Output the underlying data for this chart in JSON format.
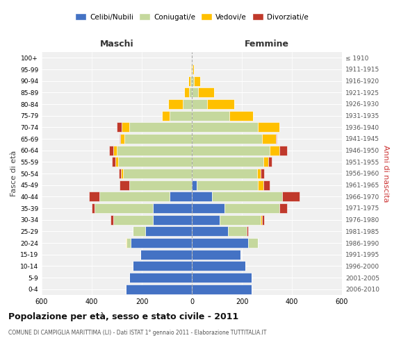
{
  "age_groups": [
    "0-4",
    "5-9",
    "10-14",
    "15-19",
    "20-24",
    "25-29",
    "30-34",
    "35-39",
    "40-44",
    "45-49",
    "50-54",
    "55-59",
    "60-64",
    "65-69",
    "70-74",
    "75-79",
    "80-84",
    "85-89",
    "90-94",
    "95-99",
    "100+"
  ],
  "birth_years": [
    "2006-2010",
    "2001-2005",
    "1996-2000",
    "1991-1995",
    "1986-1990",
    "1981-1985",
    "1976-1980",
    "1971-1975",
    "1966-1970",
    "1961-1965",
    "1956-1960",
    "1951-1955",
    "1946-1950",
    "1941-1945",
    "1936-1940",
    "1931-1935",
    "1926-1930",
    "1921-1925",
    "1916-1920",
    "1911-1915",
    "≤ 1910"
  ],
  "maschi": {
    "celibi": [
      265,
      250,
      235,
      205,
      245,
      185,
      155,
      155,
      90,
      0,
      0,
      0,
      0,
      0,
      0,
      0,
      0,
      0,
      0,
      0,
      0
    ],
    "coniugati": [
      0,
      0,
      0,
      0,
      15,
      50,
      160,
      235,
      280,
      250,
      275,
      295,
      300,
      270,
      250,
      90,
      35,
      10,
      5,
      2,
      0
    ],
    "vedovi": [
      0,
      0,
      0,
      0,
      5,
      0,
      0,
      0,
      0,
      0,
      8,
      10,
      15,
      15,
      30,
      30,
      60,
      20,
      10,
      3,
      0
    ],
    "divorziati": [
      0,
      0,
      0,
      0,
      0,
      0,
      10,
      10,
      40,
      40,
      10,
      15,
      15,
      5,
      20,
      0,
      0,
      0,
      0,
      0,
      0
    ]
  },
  "femmine": {
    "nubili": [
      240,
      240,
      215,
      195,
      225,
      145,
      110,
      130,
      80,
      20,
      0,
      0,
      0,
      0,
      0,
      0,
      0,
      0,
      0,
      0,
      0
    ],
    "coniugate": [
      0,
      0,
      0,
      0,
      40,
      75,
      165,
      220,
      280,
      245,
      260,
      285,
      310,
      280,
      265,
      150,
      60,
      25,
      8,
      2,
      0
    ],
    "vedove": [
      0,
      0,
      0,
      0,
      0,
      0,
      5,
      0,
      0,
      20,
      15,
      20,
      40,
      55,
      85,
      95,
      110,
      65,
      25,
      5,
      0
    ],
    "divorziate": [
      0,
      0,
      0,
      0,
      0,
      5,
      10,
      30,
      70,
      25,
      15,
      15,
      30,
      5,
      0,
      0,
      0,
      0,
      0,
      0,
      0
    ]
  },
  "colors": {
    "celibi": "#4472c4",
    "coniugati": "#c5d89d",
    "vedovi": "#ffc000",
    "divorziati": "#c0392b"
  },
  "title": "Popolazione per età, sesso e stato civile - 2011",
  "subtitle": "COMUNE DI CAMPIGLIA MARITTIMA (LI) - Dati ISTAT 1° gennaio 2011 - Elaborazione TUTTITALIA.IT",
  "xlabel_left": "Maschi",
  "xlabel_right": "Femmine",
  "ylabel_left": "Fasce di età",
  "ylabel_right": "Anni di nascita",
  "xlim": 600,
  "background_color": "#f0f0f0",
  "legend_labels": [
    "Celibi/Nubili",
    "Coniugati/e",
    "Vedovi/e",
    "Divorziati/e"
  ]
}
